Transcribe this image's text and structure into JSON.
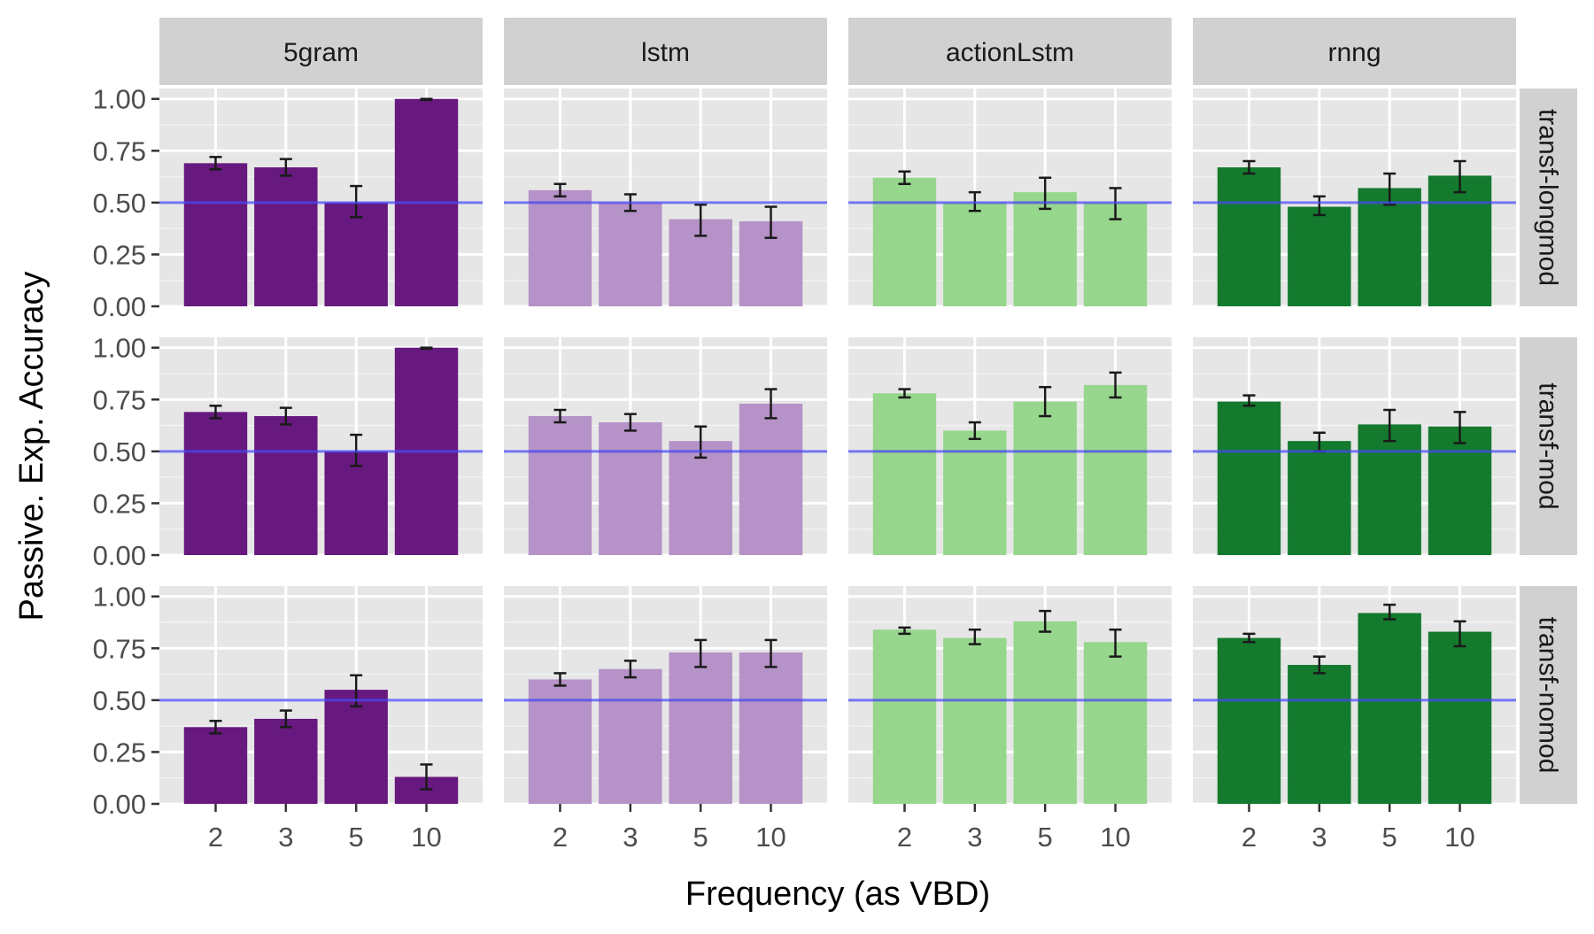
{
  "chart_data": {
    "type": "bar",
    "facet_layout": "grid",
    "column_facets": [
      "5gram",
      "lstm",
      "actionLstm",
      "rnng"
    ],
    "row_facets": [
      "transf-longmod",
      "transf-mod",
      "transf-nomod"
    ],
    "categories": [
      "2",
      "3",
      "5",
      "10"
    ],
    "xlabel": "Frequency (as VBD)",
    "ylabel": "Passive. Exp. Accuracy",
    "ylim": [
      0,
      1.05
    ],
    "yticks": [
      0,
      0.25,
      0.5,
      0.75,
      1.0
    ],
    "ytick_labels": [
      "0.00",
      "0.25",
      "0.50",
      "0.75",
      "1.00"
    ],
    "reference_line": 0.5,
    "grid": true,
    "colors": {
      "5gram": "#67197f",
      "lstm": "#b592c7",
      "actionLstm": "#97d68d",
      "rnng": "#147a2e",
      "reference_line": "#4747f0",
      "panel_bg": "#e6e6e6",
      "strip_bg": "#d1d1d1"
    },
    "panels": [
      {
        "row": "transf-longmod",
        "col": "5gram",
        "values": [
          0.69,
          0.67,
          0.5,
          1.0
        ],
        "err_low": [
          0.66,
          0.63,
          0.43,
          0.995
        ],
        "err_high": [
          0.72,
          0.71,
          0.58,
          1.0
        ]
      },
      {
        "row": "transf-longmod",
        "col": "lstm",
        "values": [
          0.56,
          0.5,
          0.42,
          0.41
        ],
        "err_low": [
          0.53,
          0.46,
          0.34,
          0.33
        ],
        "err_high": [
          0.59,
          0.54,
          0.49,
          0.48
        ]
      },
      {
        "row": "transf-longmod",
        "col": "actionLstm",
        "values": [
          0.62,
          0.5,
          0.55,
          0.5
        ],
        "err_low": [
          0.59,
          0.46,
          0.47,
          0.42
        ],
        "err_high": [
          0.65,
          0.55,
          0.62,
          0.57
        ]
      },
      {
        "row": "transf-longmod",
        "col": "rnng",
        "values": [
          0.67,
          0.48,
          0.57,
          0.63
        ],
        "err_low": [
          0.64,
          0.44,
          0.49,
          0.55
        ],
        "err_high": [
          0.7,
          0.53,
          0.64,
          0.7
        ]
      },
      {
        "row": "transf-mod",
        "col": "5gram",
        "values": [
          0.69,
          0.67,
          0.5,
          1.0
        ],
        "err_low": [
          0.66,
          0.63,
          0.43,
          0.995
        ],
        "err_high": [
          0.72,
          0.71,
          0.58,
          1.0
        ]
      },
      {
        "row": "transf-mod",
        "col": "lstm",
        "values": [
          0.67,
          0.64,
          0.55,
          0.73
        ],
        "err_low": [
          0.64,
          0.6,
          0.47,
          0.66
        ],
        "err_high": [
          0.7,
          0.68,
          0.62,
          0.8
        ]
      },
      {
        "row": "transf-mod",
        "col": "actionLstm",
        "values": [
          0.78,
          0.6,
          0.74,
          0.82
        ],
        "err_low": [
          0.76,
          0.56,
          0.67,
          0.76
        ],
        "err_high": [
          0.8,
          0.64,
          0.81,
          0.88
        ]
      },
      {
        "row": "transf-mod",
        "col": "rnng",
        "values": [
          0.74,
          0.55,
          0.63,
          0.62
        ],
        "err_low": [
          0.72,
          0.5,
          0.55,
          0.54
        ],
        "err_high": [
          0.77,
          0.59,
          0.7,
          0.69
        ]
      },
      {
        "row": "transf-nomod",
        "col": "5gram",
        "values": [
          0.37,
          0.41,
          0.55,
          0.13
        ],
        "err_low": [
          0.34,
          0.37,
          0.47,
          0.07
        ],
        "err_high": [
          0.4,
          0.45,
          0.62,
          0.19
        ]
      },
      {
        "row": "transf-nomod",
        "col": "lstm",
        "values": [
          0.6,
          0.65,
          0.73,
          0.73
        ],
        "err_low": [
          0.57,
          0.61,
          0.66,
          0.66
        ],
        "err_high": [
          0.63,
          0.69,
          0.79,
          0.79
        ]
      },
      {
        "row": "transf-nomod",
        "col": "actionLstm",
        "values": [
          0.84,
          0.8,
          0.88,
          0.78
        ],
        "err_low": [
          0.82,
          0.77,
          0.83,
          0.71
        ],
        "err_high": [
          0.85,
          0.84,
          0.93,
          0.84
        ]
      },
      {
        "row": "transf-nomod",
        "col": "rnng",
        "values": [
          0.8,
          0.67,
          0.92,
          0.83
        ],
        "err_low": [
          0.78,
          0.63,
          0.89,
          0.76
        ],
        "err_high": [
          0.82,
          0.71,
          0.96,
          0.88
        ]
      }
    ]
  }
}
